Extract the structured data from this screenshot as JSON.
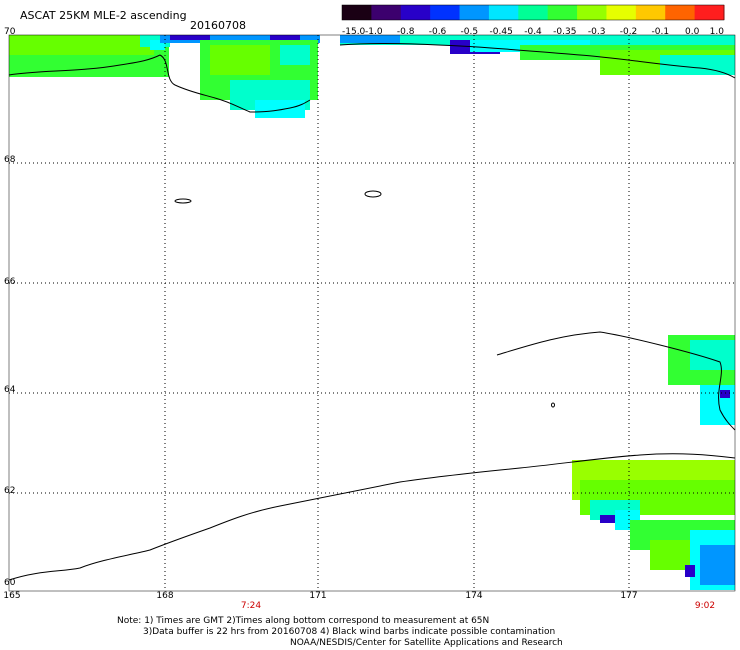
{
  "title": "ASCAT 25KM MLE-2 ascending",
  "date": "20160708",
  "colorbar": {
    "labels": [
      "-15.0",
      "-1.0",
      "-0.8",
      "-0.6",
      "-0.5",
      "-0.45",
      "-0.4",
      "-0.35",
      "-0.3",
      "-0.2",
      "-0.1",
      "0.0",
      "1.0"
    ],
    "colors": [
      "#1a0014",
      "#3c006e",
      "#2800c8",
      "#0032ff",
      "#0096ff",
      "#00e6ff",
      "#00ff96",
      "#32ff32",
      "#96ff00",
      "#e6ff00",
      "#ffc800",
      "#ff6400",
      "#ff1e1e"
    ]
  },
  "lat_labels": [
    "70",
    "68",
    "66",
    "64",
    "62",
    "60"
  ],
  "lon_labels": [
    "165",
    "168",
    "171",
    "174",
    "177"
  ],
  "time_labels": [
    "7:24",
    "9:02"
  ],
  "notes": [
    "Note: 1) Times are GMT 2)Times along bottom correspond to measurement at 65N",
    "3)Data buffer is 22 hrs from 20160708 4) Black wind barbs indicate possible contamination",
    "NOAA/NESDIS/Center for Satellite Applications and Research"
  ],
  "colors": {
    "green": "#32ff32",
    "lime": "#66ff00",
    "yellowgreen": "#99ff00",
    "cyan": "#00ffff",
    "teal": "#00ffcc",
    "blue": "#0096ff",
    "navy": "#2800c8"
  }
}
